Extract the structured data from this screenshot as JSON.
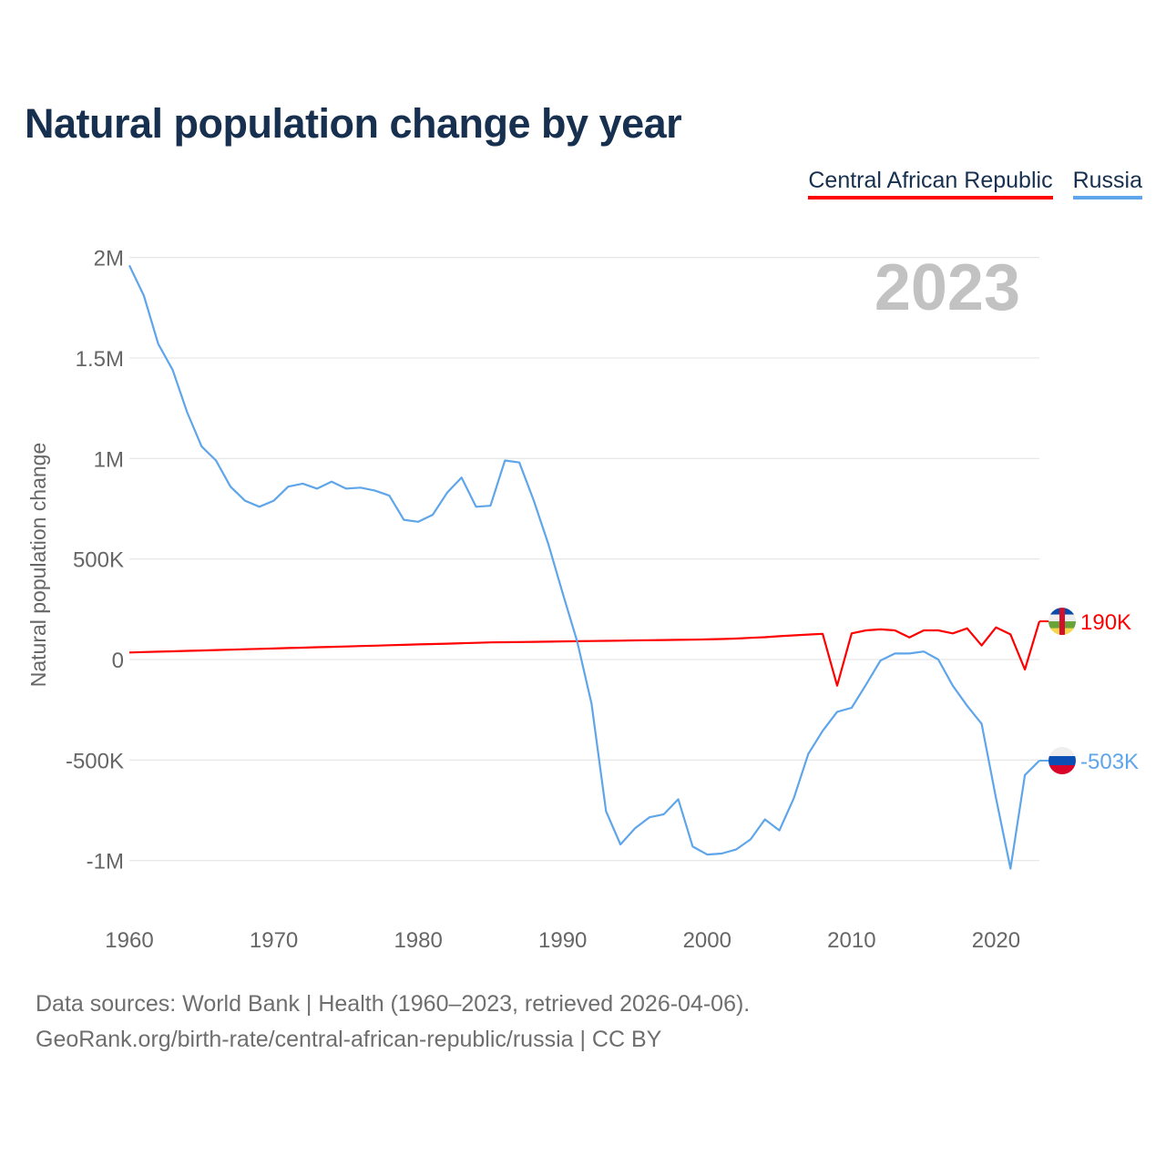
{
  "title": "Natural population change by year",
  "legend": [
    {
      "label": "Central African Republic",
      "color": "#ff0000"
    },
    {
      "label": "Russia",
      "color": "#5ea5ea"
    }
  ],
  "year_watermark": "2023",
  "footer": {
    "line1": "Data sources: World Bank | Health (1960–2023, retrieved 2026-04-06).",
    "line2": "GeoRank.org/birth-rate/central-african-republic/russia | CC BY"
  },
  "chart_data": {
    "type": "line",
    "title": "Natural population change by year",
    "xlabel": "",
    "ylabel": "Natural population change",
    "unit": "millions",
    "xlim": [
      1960,
      2023
    ],
    "ylim": [
      -1.0,
      2.0
    ],
    "x_ticks": [
      "1960",
      "1970",
      "1980",
      "1990",
      "2000",
      "2010",
      "2020"
    ],
    "y_ticks": [
      {
        "v": 2,
        "label": "2M"
      },
      {
        "v": 1.5,
        "label": "1.5M"
      },
      {
        "v": 1,
        "label": "1M"
      },
      {
        "v": 0.5,
        "label": "500K"
      },
      {
        "v": 0,
        "label": "0"
      },
      {
        "v": -0.5,
        "label": "-500K"
      },
      {
        "v": -1,
        "label": "-1M"
      }
    ],
    "grid": true,
    "legend_position": "top-right",
    "start_year": 1960,
    "series": [
      {
        "name": "Central African Republic",
        "color": "#ff0000",
        "end_label": "190K",
        "values": [
          0.035,
          0.037,
          0.039,
          0.041,
          0.043,
          0.045,
          0.047,
          0.049,
          0.051,
          0.053,
          0.055,
          0.057,
          0.059,
          0.061,
          0.063,
          0.065,
          0.067,
          0.069,
          0.071,
          0.073,
          0.075,
          0.077,
          0.079,
          0.081,
          0.083,
          0.085,
          0.086,
          0.087,
          0.088,
          0.089,
          0.09,
          0.091,
          0.092,
          0.093,
          0.094,
          0.095,
          0.096,
          0.097,
          0.098,
          0.099,
          0.1,
          0.102,
          0.104,
          0.108,
          0.111,
          0.116,
          0.12,
          0.124,
          0.128,
          -0.13,
          0.13,
          0.145,
          0.15,
          0.145,
          0.11,
          0.145,
          0.145,
          0.13,
          0.155,
          0.07,
          0.16,
          0.125,
          -0.05,
          0.19
        ]
      },
      {
        "name": "Russia",
        "color": "#5ea5ea",
        "end_label": "-503K",
        "values": [
          1.96,
          1.81,
          1.57,
          1.44,
          1.23,
          1.06,
          0.99,
          0.86,
          0.79,
          0.76,
          0.79,
          0.86,
          0.875,
          0.85,
          0.885,
          0.85,
          0.855,
          0.84,
          0.815,
          0.695,
          0.685,
          0.72,
          0.83,
          0.905,
          0.76,
          0.765,
          0.99,
          0.98,
          0.79,
          0.575,
          0.33,
          0.09,
          -0.22,
          -0.755,
          -0.92,
          -0.84,
          -0.785,
          -0.77,
          -0.695,
          -0.93,
          -0.97,
          -0.965,
          -0.945,
          -0.895,
          -0.795,
          -0.85,
          -0.69,
          -0.47,
          -0.355,
          -0.26,
          -0.24,
          -0.125,
          -0.005,
          0.03,
          0.03,
          0.04,
          0.0,
          -0.13,
          -0.23,
          -0.32,
          -0.69,
          -1.04,
          -0.575,
          -0.503
        ]
      }
    ]
  }
}
